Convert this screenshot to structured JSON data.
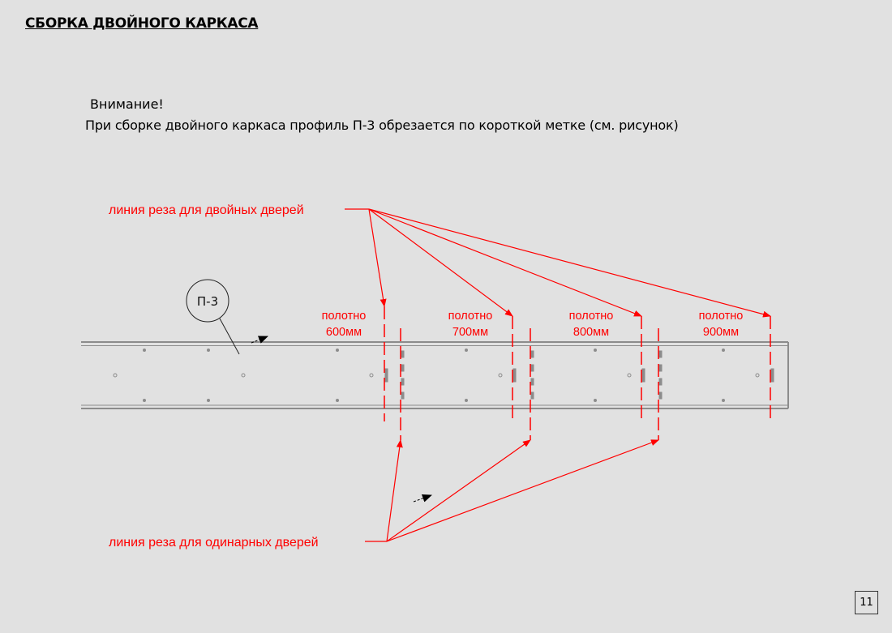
{
  "page": {
    "title": "СБОРКА ДВОЙНОГО КАРКАСА",
    "attention": "Внимание!",
    "note": "При сборке двойного каркаса профиль П-3 обрезается по короткой метке (см. рисунок)",
    "page_number": "11"
  },
  "diagram": {
    "profile_label": "П-3",
    "double_door_cut_label": "линия реза для двойных дверей",
    "single_door_cut_label": "линия реза для одинарных дверей",
    "panels": [
      {
        "line1": "полотно",
        "line2": "600мм"
      },
      {
        "line1": "полотно",
        "line2": "700мм"
      },
      {
        "line1": "полотно",
        "line2": "800мм"
      },
      {
        "line1": "полотно",
        "line2": "900мм"
      }
    ],
    "line_color": "#ff0000",
    "profile_color": "#8c8c8c"
  }
}
